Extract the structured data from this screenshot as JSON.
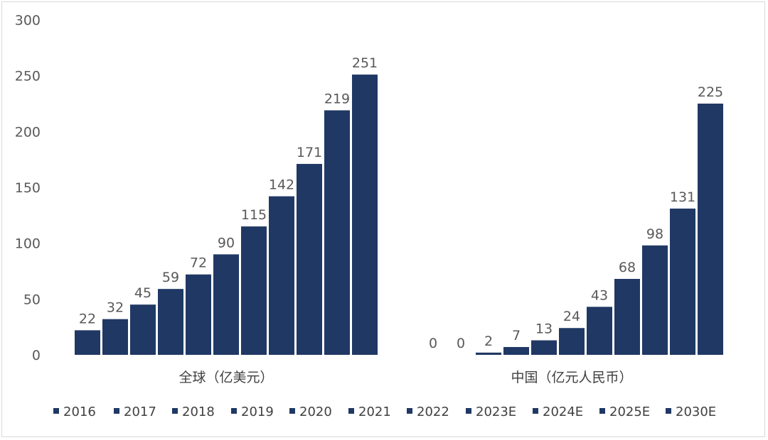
{
  "chart_data": {
    "type": "bar",
    "categories": [
      "全球（亿美元）",
      "中国（亿元人民币）"
    ],
    "series": [
      {
        "name": "2016",
        "values": [
          22,
          0
        ]
      },
      {
        "name": "2017",
        "values": [
          32,
          0
        ]
      },
      {
        "name": "2018",
        "values": [
          45,
          2
        ]
      },
      {
        "name": "2019",
        "values": [
          59,
          7
        ]
      },
      {
        "name": "2020",
        "values": [
          72,
          13
        ]
      },
      {
        "name": "2021",
        "values": [
          90,
          24
        ]
      },
      {
        "name": "2022",
        "values": [
          115,
          43
        ]
      },
      {
        "name": "2023E",
        "values": [
          142,
          68
        ]
      },
      {
        "name": "2024E",
        "values": [
          171,
          98
        ]
      },
      {
        "name": "2025E",
        "values": [
          219,
          131
        ]
      },
      {
        "name": "2030E",
        "values": [
          251,
          225
        ]
      }
    ],
    "ylim": [
      0,
      300
    ],
    "yticks": [
      "0",
      "50",
      "100",
      "150",
      "200",
      "250",
      "300"
    ],
    "grid": false,
    "legend_position": "bottom",
    "bar_color": "#203864",
    "data_labels": true
  }
}
